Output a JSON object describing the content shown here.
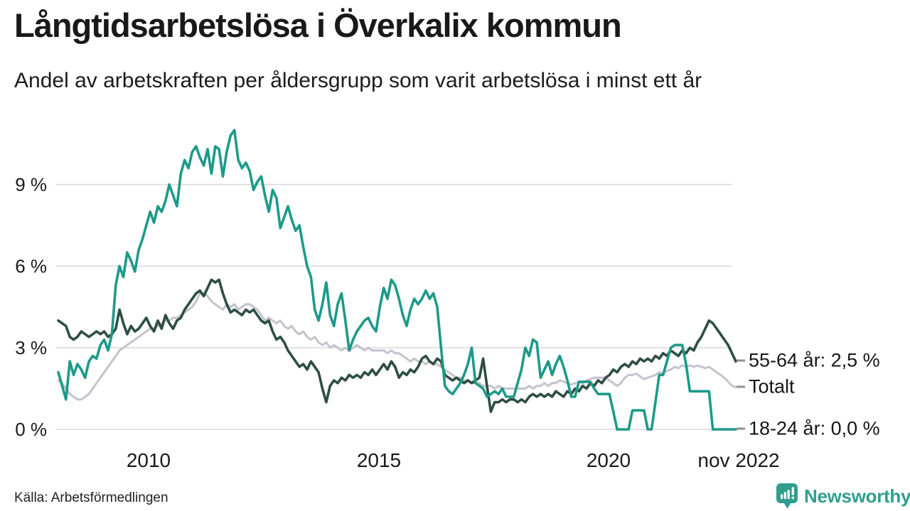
{
  "title": "Långtidsarbetslösa i Överkalix kommun",
  "subtitle": "Andel av arbetskraften per åldersgrupp som varit arbetslösa i minst ett år",
  "source": "Källa: Arbetsförmedlingen",
  "branding": {
    "name": "Newsworthy",
    "icon": "speech-bubble-bar-chart",
    "color": "#2f9e8e"
  },
  "chart_data": {
    "type": "line",
    "title": "Långtidsarbetslösa i Överkalix kommun",
    "x_axis": {
      "unit": "month",
      "start": "2008",
      "end": "nov 2022",
      "tick_labels": [
        "2010",
        "2015",
        "2020",
        "nov 2022"
      ]
    },
    "y_axis": {
      "unit": "percent of labour force",
      "tick_labels": [
        "0 %",
        "3 %",
        "6 %",
        "9 %"
      ],
      "grid_values": [
        0,
        3,
        6,
        9
      ],
      "ylim": [
        0,
        11.5
      ]
    },
    "grid": "horizontal",
    "legend_position": "right-end-of-line",
    "series": [
      {
        "name": "Totalt",
        "label": "Totalt",
        "color": "#c6c4ce",
        "end_value": 1.55,
        "values": [
          1.8,
          1.7,
          1.5,
          1.3,
          1.2,
          1.1,
          1.1,
          1.2,
          1.3,
          1.5,
          1.7,
          1.9,
          2.1,
          2.3,
          2.5,
          2.7,
          2.9,
          3.0,
          3.1,
          3.2,
          3.3,
          3.4,
          3.5,
          3.6,
          3.7,
          3.7,
          3.8,
          3.9,
          4.0,
          4.0,
          4.1,
          4.1,
          4.2,
          4.3,
          4.4,
          4.5,
          4.7,
          5.0,
          5.0,
          4.9,
          4.7,
          4.6,
          4.5,
          4.4,
          4.6,
          4.5,
          4.6,
          4.4,
          4.5,
          4.6,
          4.6,
          4.5,
          4.4,
          4.2,
          4.0,
          4.1,
          4.0,
          3.9,
          4.0,
          3.8,
          3.7,
          3.8,
          3.6,
          3.5,
          3.6,
          3.4,
          3.3,
          3.4,
          3.2,
          3.1,
          3.2,
          3.0,
          3.1,
          3.0,
          2.9,
          3.0,
          2.9,
          3.0,
          3.1,
          3.0,
          2.9,
          3.0,
          2.9,
          2.9,
          2.9,
          2.9,
          2.8,
          2.9,
          2.8,
          2.8,
          2.7,
          2.6,
          2.5,
          2.6,
          2.5,
          2.5,
          2.4,
          2.5,
          2.4,
          2.4,
          2.3,
          2.2,
          2.1,
          2.0,
          1.9,
          1.9,
          1.8,
          1.8,
          1.7,
          1.7,
          1.7,
          1.6,
          1.6,
          1.6,
          1.5,
          1.6,
          1.5,
          1.5,
          1.5,
          1.5,
          1.5,
          1.5,
          1.5,
          1.6,
          1.5,
          1.6,
          1.6,
          1.7,
          1.6,
          1.7,
          1.7,
          1.8,
          1.75,
          1.7,
          1.65,
          1.7,
          1.75,
          1.7,
          1.8,
          1.85,
          1.9,
          1.9,
          1.9,
          1.9,
          1.8,
          1.7,
          1.6,
          1.7,
          1.9,
          2.0,
          2.0,
          2.05,
          1.95,
          1.85,
          1.9,
          1.95,
          2.0,
          2.1,
          2.05,
          2.15,
          2.2,
          2.3,
          2.25,
          2.35,
          2.3,
          2.35,
          2.3,
          2.35,
          2.3,
          2.25,
          2.3,
          2.2,
          2.1,
          2.0,
          1.9,
          1.75,
          1.6,
          1.55
        ]
      },
      {
        "name": "55-64 år",
        "label": "55-64 år: 2,5 %",
        "color": "#2e4e43",
        "end_value": 2.5,
        "values": [
          4.0,
          3.9,
          3.8,
          3.4,
          3.3,
          3.4,
          3.6,
          3.5,
          3.4,
          3.5,
          3.6,
          3.5,
          3.6,
          3.4,
          3.5,
          3.7,
          4.4,
          3.9,
          3.5,
          3.8,
          3.6,
          3.7,
          3.9,
          4.1,
          3.8,
          3.6,
          4.0,
          3.7,
          4.2,
          3.9,
          3.7,
          4.0,
          4.1,
          4.4,
          4.6,
          4.8,
          5.0,
          5.1,
          4.9,
          5.2,
          5.5,
          5.4,
          5.5,
          5.0,
          4.6,
          4.3,
          4.4,
          4.3,
          4.2,
          4.4,
          4.3,
          4.4,
          4.2,
          4.0,
          3.9,
          4.0,
          3.6,
          3.3,
          3.4,
          3.2,
          2.9,
          2.7,
          2.5,
          2.3,
          2.4,
          2.2,
          2.5,
          2.3,
          2.1,
          1.5,
          1.0,
          1.6,
          1.8,
          1.7,
          1.9,
          1.8,
          2.0,
          1.9,
          2.0,
          1.9,
          2.1,
          2.0,
          2.2,
          2.0,
          2.2,
          2.4,
          2.2,
          2.5,
          2.3,
          1.9,
          2.1,
          2.0,
          2.2,
          2.1,
          2.3,
          2.6,
          2.7,
          2.5,
          2.4,
          2.6,
          2.5,
          2.0,
          1.9,
          1.8,
          1.9,
          1.8,
          1.7,
          1.8,
          1.7,
          1.8,
          1.9,
          2.6,
          1.6,
          0.65,
          1.0,
          1.0,
          1.1,
          1.0,
          1.1,
          1.1,
          1.0,
          1.1,
          1.0,
          1.2,
          1.3,
          1.2,
          1.3,
          1.2,
          1.3,
          1.2,
          1.4,
          1.3,
          1.2,
          1.4,
          1.3,
          1.5,
          1.4,
          1.6,
          1.5,
          1.7,
          1.6,
          1.8,
          1.7,
          1.9,
          2.0,
          2.2,
          2.1,
          2.3,
          2.4,
          2.3,
          2.5,
          2.4,
          2.6,
          2.5,
          2.6,
          2.5,
          2.7,
          2.6,
          2.8,
          2.7,
          2.9,
          2.8,
          2.7,
          2.9,
          2.8,
          3.0,
          2.9,
          3.2,
          3.4,
          3.7,
          4.0,
          3.9,
          3.7,
          3.5,
          3.3,
          3.1,
          2.8,
          2.5
        ]
      },
      {
        "name": "18-24 år",
        "label": "18-24 år: 0,0 %",
        "color": "#1d9a89",
        "end_value": 0.0,
        "values": [
          2.1,
          1.6,
          1.1,
          2.5,
          2.0,
          2.4,
          2.2,
          1.9,
          2.5,
          2.7,
          2.6,
          3.1,
          3.3,
          2.9,
          3.5,
          5.3,
          6.0,
          5.6,
          6.5,
          6.2,
          5.8,
          6.6,
          7.0,
          7.5,
          8.0,
          7.6,
          8.2,
          8.0,
          8.4,
          9.0,
          8.6,
          8.2,
          9.4,
          9.9,
          9.6,
          10.2,
          10.4,
          10.0,
          9.7,
          10.3,
          9.4,
          10.4,
          10.3,
          9.3,
          10.2,
          10.8,
          11.0,
          9.9,
          9.6,
          9.8,
          9.5,
          8.8,
          9.1,
          9.3,
          8.6,
          8.0,
          8.8,
          8.5,
          7.4,
          7.8,
          8.2,
          7.7,
          7.3,
          7.5,
          6.7,
          6.0,
          5.6,
          4.4,
          4.0,
          4.6,
          5.4,
          4.2,
          3.8,
          4.6,
          5.0,
          4.0,
          2.9,
          3.3,
          3.6,
          3.8,
          4.0,
          4.1,
          3.8,
          3.6,
          4.5,
          5.2,
          4.8,
          5.5,
          5.3,
          4.8,
          4.2,
          3.8,
          4.4,
          4.8,
          4.6,
          4.8,
          5.1,
          4.8,
          5.0,
          4.5,
          3.0,
          1.6,
          1.4,
          1.3,
          1.5,
          1.7,
          2.0,
          2.4,
          3.0,
          1.7,
          1.6,
          1.5,
          1.2,
          1.3,
          1.4,
          1.3,
          1.5,
          1.2,
          1.2,
          1.2,
          1.7,
          2.2,
          3.0,
          2.7,
          3.3,
          3.2,
          1.9,
          2.2,
          2.5,
          2.0,
          2.4,
          2.7,
          2.3,
          1.8,
          1.2,
          1.2,
          1.75,
          1.75,
          1.75,
          1.75,
          1.5,
          1.3,
          1.3,
          1.3,
          1.3,
          0.65,
          0.0,
          0.0,
          0.0,
          0.0,
          0.7,
          0.7,
          0.7,
          0.7,
          0.0,
          0.0,
          1.0,
          2.0,
          2.0,
          2.5,
          3.0,
          3.1,
          3.1,
          3.1,
          2.4,
          1.4,
          1.4,
          1.4,
          1.4,
          1.4,
          1.4,
          0.0,
          0.0,
          0.0,
          0.0,
          0.0,
          0.0,
          0.0
        ]
      }
    ]
  }
}
